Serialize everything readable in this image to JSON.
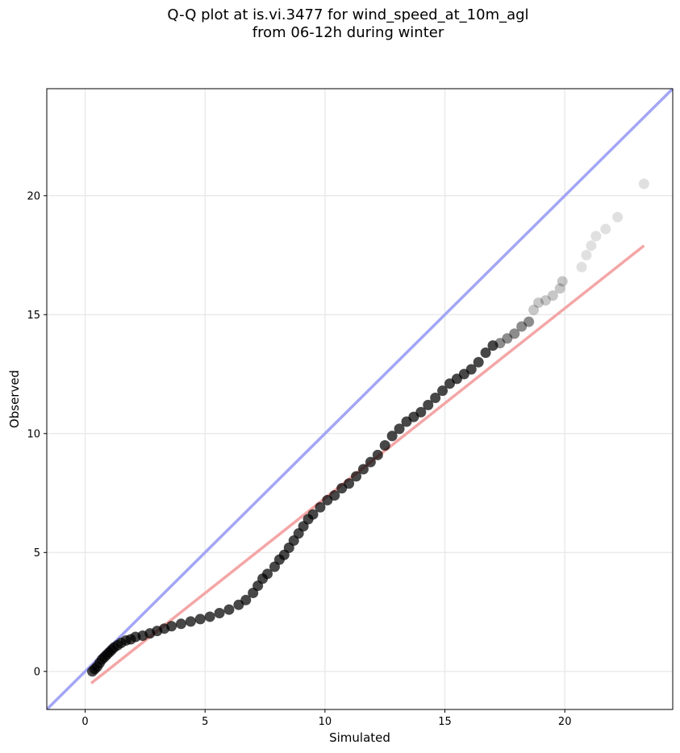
{
  "chart_data": {
    "type": "scatter",
    "title_line1": "Q-Q plot at is.vi.3477 for wind_speed_at_10m_agl",
    "title_line2": "from 06-12h during winter",
    "xlabel": "Simulated",
    "ylabel": "Observed",
    "xlim": [
      -1.6,
      24.5
    ],
    "ylim": [
      -1.6,
      24.5
    ],
    "x_ticks": [
      0,
      5,
      10,
      15,
      20
    ],
    "y_ticks": [
      0,
      5,
      10,
      15,
      20
    ],
    "grid": true,
    "identity_line": {
      "color": "#a3a6f5",
      "x": [
        -1.6,
        24.5
      ],
      "y": [
        -1.6,
        24.5
      ]
    },
    "fit_line": {
      "color": "#f4a6a6",
      "x": [
        0.25,
        23.3
      ],
      "y": [
        -0.5,
        17.9
      ]
    },
    "point_color": "#000000",
    "points": [
      [
        0.3,
        0.0
      ],
      [
        0.4,
        0.1
      ],
      [
        0.5,
        0.2
      ],
      [
        0.6,
        0.35
      ],
      [
        0.7,
        0.5
      ],
      [
        0.8,
        0.6
      ],
      [
        0.9,
        0.7
      ],
      [
        1.0,
        0.8
      ],
      [
        1.1,
        0.9
      ],
      [
        1.2,
        1.0
      ],
      [
        1.35,
        1.1
      ],
      [
        1.5,
        1.2
      ],
      [
        1.7,
        1.3
      ],
      [
        1.9,
        1.35
      ],
      [
        2.1,
        1.45
      ],
      [
        2.4,
        1.5
      ],
      [
        2.7,
        1.6
      ],
      [
        3.0,
        1.7
      ],
      [
        3.3,
        1.8
      ],
      [
        3.6,
        1.9
      ],
      [
        4.0,
        2.0
      ],
      [
        4.4,
        2.1
      ],
      [
        4.8,
        2.2
      ],
      [
        5.2,
        2.3
      ],
      [
        5.6,
        2.45
      ],
      [
        6.0,
        2.6
      ],
      [
        6.4,
        2.8
      ],
      [
        6.7,
        3.0
      ],
      [
        7.0,
        3.3
      ],
      [
        7.2,
        3.6
      ],
      [
        7.4,
        3.9
      ],
      [
        7.6,
        4.1
      ],
      [
        7.9,
        4.4
      ],
      [
        8.1,
        4.7
      ],
      [
        8.3,
        4.9
      ],
      [
        8.5,
        5.2
      ],
      [
        8.7,
        5.5
      ],
      [
        8.9,
        5.8
      ],
      [
        9.1,
        6.1
      ],
      [
        9.3,
        6.4
      ],
      [
        9.5,
        6.6
      ],
      [
        9.8,
        6.9
      ],
      [
        10.1,
        7.2
      ],
      [
        10.4,
        7.4
      ],
      [
        10.7,
        7.7
      ],
      [
        11.0,
        7.9
      ],
      [
        11.3,
        8.2
      ],
      [
        11.6,
        8.5
      ],
      [
        11.9,
        8.8
      ],
      [
        12.2,
        9.1
      ],
      [
        12.5,
        9.5
      ],
      [
        12.8,
        9.9
      ],
      [
        13.1,
        10.2
      ],
      [
        13.4,
        10.5
      ],
      [
        13.7,
        10.7
      ],
      [
        14.0,
        10.9
      ],
      [
        14.3,
        11.2
      ],
      [
        14.6,
        11.5
      ],
      [
        14.9,
        11.8
      ],
      [
        15.2,
        12.1
      ],
      [
        15.5,
        12.3
      ],
      [
        15.8,
        12.5
      ],
      [
        16.1,
        12.7
      ],
      [
        16.4,
        13.0
      ],
      [
        16.7,
        13.4
      ],
      [
        17.0,
        13.7
      ],
      [
        17.3,
        13.8
      ],
      [
        17.6,
        14.0
      ],
      [
        17.9,
        14.2
      ],
      [
        18.2,
        14.5
      ],
      [
        18.5,
        14.7
      ],
      [
        18.7,
        15.2
      ],
      [
        18.9,
        15.5
      ],
      [
        19.2,
        15.6
      ],
      [
        19.5,
        15.8
      ],
      [
        19.8,
        16.1
      ],
      [
        19.9,
        16.4
      ],
      [
        20.7,
        17.0
      ],
      [
        20.9,
        17.5
      ],
      [
        21.1,
        17.9
      ],
      [
        21.3,
        18.3
      ],
      [
        21.7,
        18.6
      ],
      [
        22.2,
        19.1
      ],
      [
        23.3,
        20.5
      ]
    ]
  }
}
